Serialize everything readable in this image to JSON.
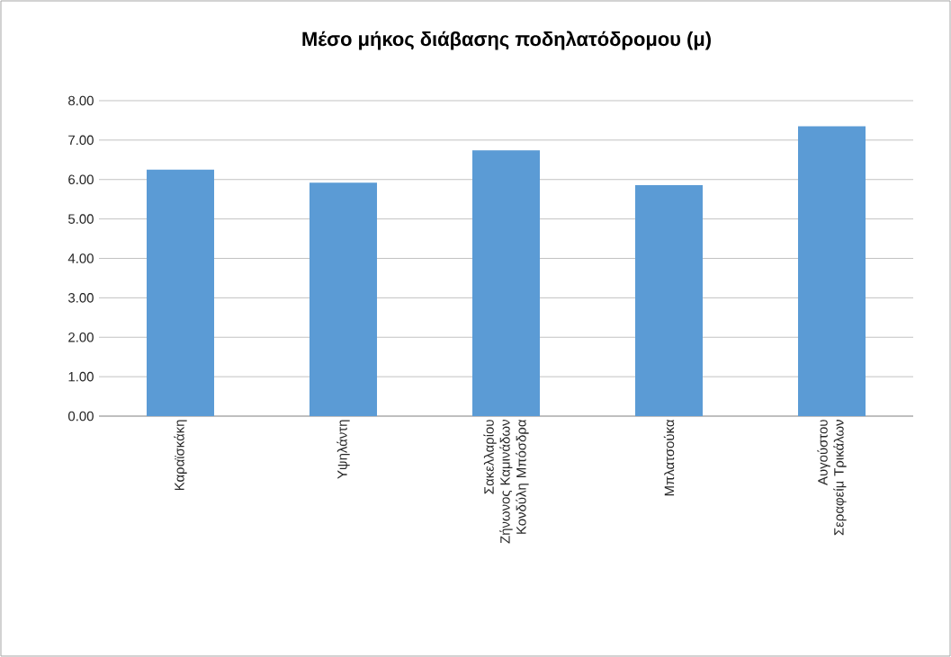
{
  "chart_data": {
    "type": "bar",
    "title": "Μέσο μήκος διάβασης ποδηλατόδρομου (μ)",
    "categories": [
      "Καραϊσκάκη",
      "Υψηλάντη",
      "Σακελλαρίου Ζήνωνος Καμινάδων Κονδύλη Μπόσδρα",
      "Μπλατσούκα",
      "Αυγούστου Σεραφείμ Τρικάλων"
    ],
    "values": [
      6.25,
      5.92,
      6.74,
      5.86,
      7.35
    ],
    "color": "#5b9bd5",
    "ylim": [
      0,
      8
    ],
    "yticks": [
      {
        "value": 0,
        "label": "0.00"
      },
      {
        "value": 1,
        "label": "1.00"
      },
      {
        "value": 2,
        "label": "2.00"
      },
      {
        "value": 3,
        "label": "3.00"
      },
      {
        "value": 4,
        "label": "4.00"
      },
      {
        "value": 5,
        "label": "5.00"
      },
      {
        "value": 6,
        "label": "6.00"
      },
      {
        "value": 7,
        "label": "7.00"
      },
      {
        "value": 8,
        "label": "8.00"
      }
    ],
    "grid": "y"
  }
}
